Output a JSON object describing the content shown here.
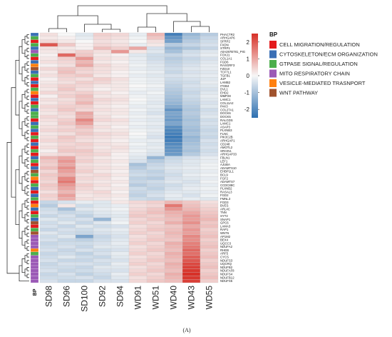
{
  "chart_data": {
    "type": "heatmap",
    "title": "",
    "panel_label": "(A)",
    "annotation_label": "BP",
    "columns": [
      "SD98",
      "SD96",
      "SD100",
      "SD92",
      "SD94",
      "WD91",
      "WD51",
      "WD40",
      "WD43",
      "WD55"
    ],
    "rows": [
      "PHACTR2",
      "ARHGAP6",
      "SFRP2",
      "FXDN",
      "STRP1",
      "A0A287B781_PIG",
      "FOXJ1",
      "COL1A1",
      "FGD6",
      "RASGRF3",
      "FZD10",
      "TCF7L1",
      "TGFB1",
      "JUP",
      "LAMB2",
      "ITGB4",
      "DVL1",
      "EHD2",
      "MMP28",
      "LAMC1",
      "COL11A2",
      "PAK3",
      "COL27A1",
      "DOCK6",
      "DOCK5",
      "RALGDS",
      "LAMC1",
      "ASAP3",
      "PLXNB3",
      "FLNC",
      "PIK3C2B",
      "ARHGAP1",
      "CD248",
      "AMOTL2",
      "SRCIN1",
      "ARHGAP33",
      "FBLN1",
      "LEF1",
      "AJUBA",
      "ADAMTS10",
      "EHBP1L1",
      "BCL9",
      "FGF2",
      "ADAMTS7",
      "CCDC88C",
      "PLXNB2",
      "RASAL3",
      "FGD2",
      "FMNL3",
      "FGD3",
      "BVES",
      "ARL4C",
      "TNN",
      "SYT2",
      "SNAP1",
      "GPC6",
      "LAMA3",
      "RAP1",
      "WNT6",
      "AP1M2",
      "BEX4",
      "UQCC3",
      "NDUFA2",
      "RHEB",
      "ARF5",
      "CYCS",
      "NDUFS3",
      "UQCRQ",
      "NDUFB2",
      "NDUFAF8",
      "NDUFS4",
      "NDUFB12",
      "NDUFS5"
    ],
    "row_bp": [
      1,
      2,
      0,
      2,
      1,
      3,
      2,
      0,
      1,
      4,
      5,
      1,
      2,
      0,
      1,
      0,
      2,
      4,
      0,
      1,
      0,
      2,
      1,
      2,
      2,
      0,
      1,
      2,
      1,
      0,
      2,
      0,
      1,
      0,
      2,
      0,
      1,
      2,
      0,
      1,
      5,
      2,
      4,
      0,
      2,
      1,
      0,
      1,
      2,
      0,
      4,
      1,
      0,
      2,
      1,
      5,
      0,
      2,
      5,
      3,
      3,
      3,
      3,
      4,
      2,
      3,
      3,
      3,
      3,
      3,
      3,
      3,
      3
    ],
    "bp_legend": [
      {
        "label": "CELL MIGRATION/REGULATION",
        "color": "#e31a1c"
      },
      {
        "label": "CYTOSKELETON/ECM ORGANIZATION",
        "color": "#3a6fb5"
      },
      {
        "label": "GTPASE SIGNAL/REGULATION",
        "color": "#4cae4c"
      },
      {
        "label": "MITO RESPIRATORY CHAIN",
        "color": "#9b59b6"
      },
      {
        "label": "VESICLE-MEDIATED TRASNPORT",
        "color": "#ff7f0e"
      },
      {
        "label": "WNT PATHWAY",
        "color": "#a0522d"
      }
    ],
    "colorbar": {
      "min": -2.5,
      "max": 2.5,
      "ticks": [
        2,
        1,
        0,
        -1,
        -2
      ],
      "colors": {
        "high": "#d73027",
        "mid": "#f7f7f7",
        "low": "#2c6fb0"
      }
    },
    "values": [
      [
        0.3,
        0.0,
        -0.3,
        0.5,
        0.4,
        -0.2,
        0.8,
        -2.2,
        -1.2,
        -0.8
      ],
      [
        0.2,
        0.1,
        -0.2,
        0.4,
        0.3,
        -0.1,
        0.6,
        -1.8,
        -1.0,
        -0.6
      ],
      [
        0.4,
        0.2,
        0.0,
        0.3,
        0.2,
        0.0,
        0.3,
        -1.6,
        -0.8,
        -0.5
      ],
      [
        2.0,
        0.6,
        0.1,
        0.4,
        0.3,
        -0.2,
        0.2,
        -0.8,
        -0.6,
        -0.4
      ],
      [
        0.3,
        0.2,
        0.1,
        0.7,
        0.5,
        1.0,
        -0.4,
        -1.2,
        -0.9,
        -0.6
      ],
      [
        0.2,
        0.3,
        0.5,
        0.3,
        1.2,
        0.2,
        -0.3,
        -1.0,
        -0.5,
        -0.3
      ],
      [
        0.1,
        1.8,
        0.6,
        0.2,
        0.1,
        -0.3,
        -0.5,
        -0.6,
        -0.4,
        -0.2
      ],
      [
        0.2,
        0.5,
        1.2,
        0.3,
        0.2,
        -0.2,
        -0.5,
        -0.8,
        -0.6,
        -0.4
      ],
      [
        0.3,
        0.4,
        0.8,
        0.2,
        0.1,
        -0.2,
        -0.4,
        -0.7,
        -0.5,
        -0.3
      ],
      [
        0.1,
        0.3,
        1.0,
        0.4,
        0.2,
        -0.1,
        -0.3,
        -0.6,
        -0.4,
        -0.2
      ],
      [
        0.4,
        0.6,
        0.5,
        0.3,
        0.2,
        -0.2,
        -0.3,
        -0.5,
        -0.3,
        -0.2
      ],
      [
        0.2,
        0.7,
        0.4,
        0.3,
        0.1,
        -0.1,
        -0.2,
        -0.6,
        -0.4,
        -0.3
      ],
      [
        0.3,
        0.5,
        0.6,
        0.2,
        0.1,
        -0.2,
        -0.3,
        -0.4,
        -0.3,
        -0.2
      ],
      [
        0.1,
        0.4,
        0.3,
        0.5,
        0.3,
        -0.1,
        -0.2,
        -0.5,
        -0.4,
        -0.3
      ],
      [
        0.2,
        0.3,
        0.5,
        0.4,
        0.2,
        -0.1,
        -0.2,
        -0.6,
        -0.5,
        -0.2
      ],
      [
        0.3,
        0.5,
        0.4,
        0.2,
        0.2,
        0.0,
        -0.1,
        -0.7,
        -0.4,
        -0.3
      ],
      [
        0.2,
        0.6,
        0.3,
        0.1,
        0.2,
        -0.1,
        -0.2,
        -0.8,
        -0.5,
        -0.4
      ],
      [
        0.4,
        0.4,
        0.5,
        0.3,
        0.1,
        -0.2,
        -0.1,
        -0.9,
        -0.6,
        -0.3
      ],
      [
        0.1,
        0.5,
        0.7,
        0.2,
        0.2,
        -0.1,
        -0.2,
        -1.0,
        -0.5,
        -0.2
      ],
      [
        0.3,
        0.3,
        0.6,
        0.4,
        0.3,
        0.0,
        -0.2,
        -1.1,
        -0.6,
        -0.3
      ],
      [
        0.2,
        0.4,
        0.8,
        0.3,
        0.2,
        -0.1,
        -0.3,
        -1.2,
        -0.7,
        -0.4
      ],
      [
        0.4,
        0.5,
        0.5,
        0.2,
        0.1,
        -0.2,
        -0.2,
        -1.4,
        -0.8,
        -0.3
      ],
      [
        0.3,
        0.6,
        0.4,
        0.3,
        0.2,
        -0.1,
        -0.3,
        -1.8,
        -0.9,
        -0.5
      ],
      [
        0.2,
        0.4,
        1.0,
        0.2,
        0.2,
        -0.2,
        -0.4,
        -1.5,
        -0.8,
        -0.4
      ],
      [
        0.4,
        0.3,
        0.9,
        0.3,
        0.1,
        -0.1,
        -0.2,
        -1.6,
        -0.9,
        -0.3
      ],
      [
        0.3,
        0.5,
        1.4,
        0.4,
        0.3,
        -0.2,
        -0.3,
        -1.7,
        -1.0,
        -0.5
      ],
      [
        0.2,
        0.6,
        1.1,
        0.2,
        0.2,
        -0.1,
        -0.2,
        -1.5,
        -0.9,
        -0.4
      ],
      [
        0.3,
        0.4,
        0.7,
        0.3,
        0.1,
        -0.2,
        -0.3,
        -1.9,
        -1.0,
        -0.5
      ],
      [
        0.4,
        0.5,
        0.5,
        0.2,
        0.2,
        -0.1,
        -0.2,
        -2.1,
        -1.1,
        -0.6
      ],
      [
        0.2,
        0.3,
        0.6,
        0.4,
        0.3,
        0.0,
        -0.3,
        -2.2,
        -1.0,
        -0.5
      ],
      [
        0.3,
        0.6,
        0.4,
        0.3,
        0.2,
        -0.1,
        -0.4,
        -2.3,
        -1.2,
        -0.6
      ],
      [
        0.4,
        0.5,
        0.3,
        0.2,
        0.1,
        -0.2,
        -0.2,
        -2.2,
        -1.1,
        -0.4
      ],
      [
        0.2,
        0.4,
        0.5,
        0.3,
        0.2,
        -0.1,
        -0.3,
        -2.0,
        -1.0,
        -0.5
      ],
      [
        0.3,
        0.5,
        0.4,
        0.2,
        0.3,
        -0.2,
        -0.2,
        -1.9,
        -0.9,
        -0.4
      ],
      [
        0.1,
        0.6,
        0.6,
        0.3,
        0.2,
        -0.1,
        -0.3,
        -1.8,
        -1.0,
        -0.5
      ],
      [
        0.3,
        0.4,
        0.5,
        0.4,
        0.1,
        -0.2,
        -0.4,
        -1.7,
        -0.8,
        -0.4
      ],
      [
        0.8,
        1.0,
        0.4,
        0.2,
        0.1,
        -0.3,
        -1.2,
        -0.6,
        -0.4,
        -0.2
      ],
      [
        0.6,
        1.2,
        0.5,
        0.3,
        0.2,
        -0.4,
        -0.8,
        -0.5,
        -0.3,
        -0.2
      ],
      [
        0.5,
        1.0,
        0.3,
        0.2,
        0.1,
        -1.0,
        -0.6,
        -0.4,
        -0.3,
        -0.1
      ],
      [
        0.7,
        1.3,
        0.4,
        0.3,
        0.2,
        -0.8,
        -0.5,
        -0.3,
        -0.2,
        -0.1
      ],
      [
        0.4,
        1.1,
        0.5,
        0.2,
        0.1,
        -0.6,
        -0.7,
        -0.4,
        -0.3,
        -0.2
      ],
      [
        0.6,
        0.9,
        0.3,
        0.4,
        0.2,
        -0.5,
        -0.6,
        -0.5,
        -0.2,
        -0.1
      ],
      [
        0.5,
        1.4,
        0.4,
        0.3,
        0.1,
        -0.7,
        -0.8,
        -0.4,
        -0.3,
        -0.2
      ],
      [
        0.4,
        1.6,
        0.3,
        0.2,
        0.2,
        -0.6,
        -0.5,
        -0.3,
        -0.4,
        -0.1
      ],
      [
        0.6,
        1.2,
        0.5,
        0.3,
        0.1,
        -0.8,
        -0.6,
        -0.5,
        -0.3,
        -0.2
      ],
      [
        0.5,
        1.0,
        0.4,
        0.2,
        0.2,
        -0.5,
        -0.7,
        -0.4,
        -0.2,
        -0.1
      ],
      [
        0.3,
        0.8,
        0.3,
        0.4,
        0.1,
        -0.6,
        -0.5,
        -0.3,
        -0.3,
        -0.2
      ],
      [
        0.5,
        1.1,
        0.2,
        0.3,
        0.2,
        -0.7,
        -0.4,
        -0.2,
        -0.4,
        -0.1
      ],
      [
        0.4,
        0.9,
        0.3,
        0.2,
        0.1,
        -0.5,
        -0.6,
        -0.3,
        -0.2,
        -0.3
      ],
      [
        -0.6,
        -0.4,
        -0.2,
        -0.3,
        0.2,
        0.4,
        0.5,
        0.8,
        0.6,
        0.3
      ],
      [
        -0.8,
        0.2,
        -0.5,
        -0.3,
        -0.2,
        0.3,
        0.4,
        1.6,
        0.7,
        0.4
      ],
      [
        -0.5,
        -1.0,
        -0.3,
        -0.2,
        -0.1,
        0.4,
        0.6,
        1.2,
        0.8,
        0.5
      ],
      [
        -0.4,
        -0.6,
        -0.5,
        -0.3,
        -0.2,
        0.5,
        0.7,
        0.9,
        1.0,
        0.6
      ],
      [
        -0.6,
        -0.4,
        -0.7,
        -0.4,
        -0.3,
        0.6,
        0.5,
        0.8,
        1.2,
        0.7
      ],
      [
        -0.3,
        -0.5,
        -0.4,
        -1.2,
        -0.2,
        0.4,
        0.6,
        0.7,
        1.1,
        0.8
      ],
      [
        -0.5,
        -0.3,
        -0.6,
        -0.3,
        -0.1,
        0.5,
        0.4,
        0.9,
        1.3,
        0.6
      ],
      [
        -0.4,
        -0.6,
        -0.3,
        -0.5,
        -0.4,
        0.3,
        0.5,
        0.6,
        1.0,
        0.7
      ],
      [
        -0.6,
        -0.4,
        -0.5,
        -0.3,
        -0.2,
        0.4,
        0.6,
        0.7,
        1.2,
        0.5
      ],
      [
        -0.3,
        -0.5,
        -0.6,
        -0.4,
        -0.3,
        0.5,
        0.4,
        0.8,
        1.1,
        0.6
      ],
      [
        -0.5,
        -0.3,
        -1.5,
        -0.6,
        -0.4,
        0.3,
        0.5,
        0.7,
        1.4,
        0.7
      ],
      [
        -0.4,
        -0.6,
        -0.7,
        -0.5,
        -0.3,
        0.4,
        0.6,
        0.6,
        1.3,
        0.5
      ],
      [
        -0.6,
        -0.5,
        -0.5,
        -0.4,
        -0.2,
        0.5,
        0.4,
        0.9,
        1.5,
        0.6
      ],
      [
        -0.5,
        -0.4,
        -0.6,
        -0.3,
        -0.3,
        0.3,
        0.5,
        0.8,
        1.6,
        0.7
      ],
      [
        -0.4,
        -0.6,
        -0.4,
        -0.5,
        -0.4,
        0.4,
        0.6,
        0.7,
        1.8,
        0.5
      ],
      [
        -0.6,
        -0.5,
        -0.7,
        -0.4,
        -0.2,
        0.5,
        0.4,
        0.9,
        1.7,
        0.6
      ],
      [
        -0.5,
        -0.3,
        -0.5,
        -0.6,
        -0.3,
        0.3,
        0.5,
        0.8,
        1.9,
        0.7
      ],
      [
        -0.4,
        -0.6,
        -0.6,
        -0.4,
        -0.4,
        0.4,
        0.6,
        0.7,
        2.0,
        0.5
      ],
      [
        -0.6,
        -0.4,
        -0.4,
        -0.5,
        -0.2,
        0.5,
        0.4,
        0.9,
        2.2,
        0.6
      ],
      [
        -0.5,
        -0.5,
        -0.6,
        -0.3,
        -0.3,
        0.3,
        0.5,
        0.8,
        2.3,
        0.7
      ],
      [
        -0.4,
        -0.6,
        -0.5,
        -0.4,
        -0.4,
        0.4,
        0.6,
        0.7,
        2.4,
        0.5
      ],
      [
        -0.6,
        -0.4,
        -0.7,
        -0.5,
        -0.2,
        0.5,
        0.4,
        0.9,
        2.5,
        0.6
      ],
      [
        -0.5,
        -0.5,
        -0.4,
        -0.6,
        -0.3,
        0.3,
        0.5,
        0.8,
        2.4,
        0.7
      ],
      [
        -0.4,
        -0.6,
        -0.6,
        -0.4,
        -0.4,
        0.4,
        0.6,
        0.7,
        2.3,
        0.5
      ]
    ],
    "grid": true,
    "legend_placement": "right"
  }
}
